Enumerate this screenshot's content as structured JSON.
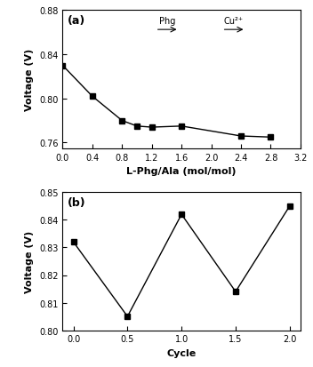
{
  "chart_data": [
    {
      "type": "line",
      "title": "(a)",
      "x_label": "L-Phg/Ala (mol/mol)",
      "y_label": "Voltage (V)",
      "x": [
        0.0,
        0.4,
        0.8,
        1.0,
        1.2,
        1.6,
        2.4,
        2.8
      ],
      "values": [
        0.83,
        0.802,
        0.78,
        0.775,
        0.774,
        0.775,
        0.766,
        0.765
      ],
      "color": "#000000",
      "marker": "square",
      "line_style": "solid",
      "xlim": [
        0.0,
        3.2
      ],
      "xticks": [
        {
          "value": 0.0,
          "label": "0.0"
        },
        0.4,
        0.8,
        1.2,
        1.6,
        2.0,
        2.4,
        2.8,
        3.2
      ],
      "ylim": [
        0.755,
        0.88
      ],
      "yticks": [
        0.76,
        {
          "value": 0.8,
          "label": "0.80"
        },
        0.84,
        {
          "value": 0.88,
          "label": "0.88"
        }
      ],
      "annotations": [
        "Phg",
        "Cu²⁺"
      ]
    },
    {
      "type": "line",
      "title": "(b)",
      "x_label": "Cycle",
      "y_label": "Voltage (V)",
      "x": [
        0.0,
        0.5,
        1.0,
        1.5,
        2.0
      ],
      "values": [
        0.832,
        0.805,
        0.842,
        0.814,
        0.845
      ],
      "color": "#000000",
      "marker": "square",
      "line_style": "solid",
      "xlim": [
        -0.1,
        2.1
      ],
      "xticks": [
        {
          "value": 0.0,
          "label": "0.0"
        },
        0.5,
        {
          "value": 1.0,
          "label": "1.0"
        },
        1.5,
        {
          "value": 2.0,
          "label": "2.0"
        }
      ],
      "ylim": [
        0.8,
        0.85
      ],
      "yticks": [
        {
          "value": 0.8,
          "label": "0.80"
        },
        0.81,
        0.82,
        0.83,
        0.84,
        0.85
      ]
    }
  ]
}
